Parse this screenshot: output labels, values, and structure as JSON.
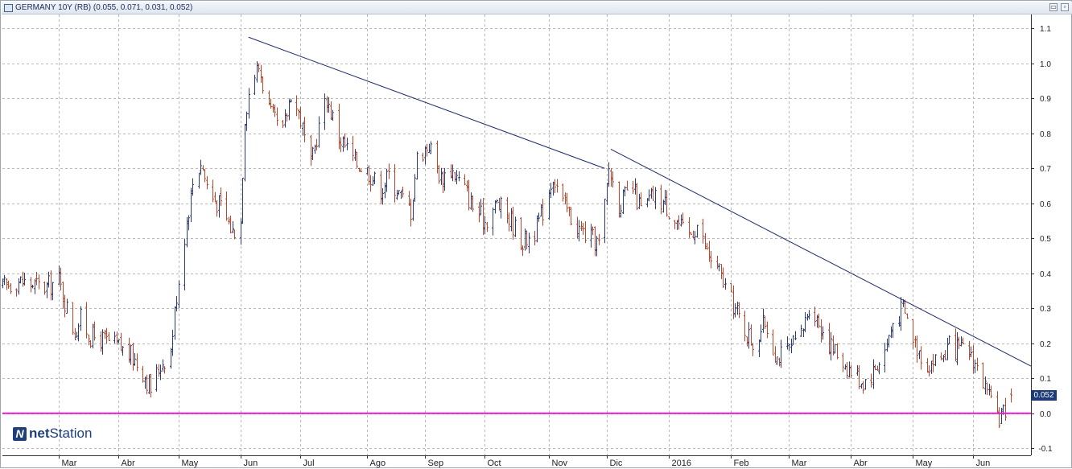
{
  "window": {
    "title": "GERMANY 10Y (RB) (0.055, 0.071, 0.031, 0.052)"
  },
  "brand": {
    "prefix": "net",
    "suffix": "Station"
  },
  "last_price_label": "0.052",
  "colors": {
    "up_bar": "#2b3a7a",
    "down_bar": "#c0442a",
    "zero_line": "#e81cd0",
    "trendline": "#1c2a66",
    "grid": "#b7b7b7"
  },
  "chart_data": {
    "type": "ohlc",
    "title": "GERMANY 10Y (RB)",
    "y_ticks": [
      "1.1",
      "1.0",
      "0.9",
      "0.8",
      "0.7",
      "0.6",
      "0.5",
      "0.4",
      "0.3",
      "0.2",
      "0.1",
      "0.0",
      "-0.1"
    ],
    "ylim": [
      -0.12,
      1.14
    ],
    "x_start": "2015-02-02",
    "x_end": "2016-06-30",
    "x_labels": [
      {
        "label": "Mar",
        "date": "2015-03-02"
      },
      {
        "label": "Abr",
        "date": "2015-04-01"
      },
      {
        "label": "May",
        "date": "2015-05-01"
      },
      {
        "label": "Jun",
        "date": "2015-06-01"
      },
      {
        "label": "Jul",
        "date": "2015-07-01"
      },
      {
        "label": "Ago",
        "date": "2015-08-03"
      },
      {
        "label": "Sep",
        "date": "2015-09-01"
      },
      {
        "label": "Oct",
        "date": "2015-10-01"
      },
      {
        "label": "Nov",
        "date": "2015-11-02"
      },
      {
        "label": "Dic",
        "date": "2015-12-01"
      },
      {
        "label": "2016",
        "date": "2016-01-01"
      },
      {
        "label": "Feb",
        "date": "2016-02-01"
      },
      {
        "label": "Mar",
        "date": "2016-03-01"
      },
      {
        "label": "Abr",
        "date": "2016-04-01"
      },
      {
        "label": "May",
        "date": "2016-05-02"
      },
      {
        "label": "Jun",
        "date": "2016-06-01"
      }
    ],
    "last_bar": {
      "open": 0.055,
      "high": 0.071,
      "low": 0.031,
      "close": 0.052
    },
    "reference_line": {
      "y": 0.0
    },
    "trendlines": [
      {
        "x1": "2015-06-05",
        "y1": 1.075,
        "x2": "2015-11-30",
        "y2": 0.7
      },
      {
        "x1": "2015-12-03",
        "y1": 0.755,
        "x2": "2016-06-30",
        "y2": 0.135
      }
    ],
    "price_path": [
      [
        "2015-02-02",
        0.36
      ],
      [
        "2015-02-09",
        0.38
      ],
      [
        "2015-02-16",
        0.37
      ],
      [
        "2015-02-23",
        0.36
      ],
      [
        "2015-03-02",
        0.38
      ],
      [
        "2015-03-06",
        0.3
      ],
      [
        "2015-03-10",
        0.23
      ],
      [
        "2015-03-13",
        0.27
      ],
      [
        "2015-03-18",
        0.22
      ],
      [
        "2015-03-24",
        0.21
      ],
      [
        "2015-04-01",
        0.19
      ],
      [
        "2015-04-08",
        0.16
      ],
      [
        "2015-04-13",
        0.12
      ],
      [
        "2015-04-17",
        0.07
      ],
      [
        "2015-04-22",
        0.14
      ],
      [
        "2015-04-27",
        0.18
      ],
      [
        "2015-04-30",
        0.34
      ],
      [
        "2015-05-05",
        0.55
      ],
      [
        "2015-05-08",
        0.66
      ],
      [
        "2015-05-12",
        0.72
      ],
      [
        "2015-05-16",
        0.63
      ],
      [
        "2015-05-22",
        0.59
      ],
      [
        "2015-05-28",
        0.52
      ],
      [
        "2015-06-01",
        0.55
      ],
      [
        "2015-06-03",
        0.85
      ],
      [
        "2015-06-06",
        0.95
      ],
      [
        "2015-06-10",
        0.99
      ],
      [
        "2015-06-16",
        0.85
      ],
      [
        "2015-06-22",
        0.8
      ],
      [
        "2015-06-26",
        0.92
      ],
      [
        "2015-07-01",
        0.84
      ],
      [
        "2015-07-06",
        0.7
      ],
      [
        "2015-07-10",
        0.82
      ],
      [
        "2015-07-14",
        0.9
      ],
      [
        "2015-07-20",
        0.79
      ],
      [
        "2015-07-28",
        0.72
      ],
      [
        "2015-08-04",
        0.69
      ],
      [
        "2015-08-10",
        0.64
      ],
      [
        "2015-08-14",
        0.68
      ],
      [
        "2015-08-20",
        0.62
      ],
      [
        "2015-08-25",
        0.58
      ],
      [
        "2015-08-28",
        0.73
      ],
      [
        "2015-09-03",
        0.77
      ],
      [
        "2015-09-09",
        0.67
      ],
      [
        "2015-09-14",
        0.7
      ],
      [
        "2015-09-21",
        0.64
      ],
      [
        "2015-09-25",
        0.59
      ],
      [
        "2015-10-01",
        0.55
      ],
      [
        "2015-10-07",
        0.6
      ],
      [
        "2015-10-14",
        0.55
      ],
      [
        "2015-10-20",
        0.49
      ],
      [
        "2015-10-26",
        0.52
      ],
      [
        "2015-10-30",
        0.58
      ],
      [
        "2015-11-04",
        0.68
      ],
      [
        "2015-11-09",
        0.6
      ],
      [
        "2015-11-16",
        0.53
      ],
      [
        "2015-11-23",
        0.5
      ],
      [
        "2015-11-28",
        0.48
      ],
      [
        "2015-12-02",
        0.7
      ],
      [
        "2015-12-07",
        0.6
      ],
      [
        "2015-12-14",
        0.64
      ],
      [
        "2015-12-18",
        0.58
      ],
      [
        "2015-12-24",
        0.62
      ],
      [
        "2015-12-30",
        0.6
      ],
      [
        "2016-01-05",
        0.55
      ],
      [
        "2016-01-10",
        0.5
      ],
      [
        "2016-01-15",
        0.54
      ],
      [
        "2016-01-20",
        0.46
      ],
      [
        "2016-01-26",
        0.4
      ],
      [
        "2016-02-01",
        0.32
      ],
      [
        "2016-02-08",
        0.24
      ],
      [
        "2016-02-12",
        0.2
      ],
      [
        "2016-02-18",
        0.26
      ],
      [
        "2016-02-24",
        0.16
      ],
      [
        "2016-03-01",
        0.18
      ],
      [
        "2016-03-07",
        0.22
      ],
      [
        "2016-03-11",
        0.31
      ],
      [
        "2016-03-17",
        0.25
      ],
      [
        "2016-03-22",
        0.19
      ],
      [
        "2016-03-28",
        0.15
      ],
      [
        "2016-04-01",
        0.12
      ],
      [
        "2016-04-07",
        0.09
      ],
      [
        "2016-04-12",
        0.12
      ],
      [
        "2016-04-18",
        0.18
      ],
      [
        "2016-04-22",
        0.26
      ],
      [
        "2016-04-27",
        0.3
      ],
      [
        "2016-05-03",
        0.2
      ],
      [
        "2016-05-09",
        0.14
      ],
      [
        "2016-05-16",
        0.16
      ],
      [
        "2016-05-20",
        0.19
      ],
      [
        "2016-05-25",
        0.18
      ],
      [
        "2016-05-31",
        0.17
      ],
      [
        "2016-06-06",
        0.09
      ],
      [
        "2016-06-10",
        0.02
      ],
      [
        "2016-06-14",
        -0.01
      ],
      [
        "2016-06-16",
        0.0
      ],
      [
        "2016-06-20",
        0.052
      ]
    ]
  }
}
